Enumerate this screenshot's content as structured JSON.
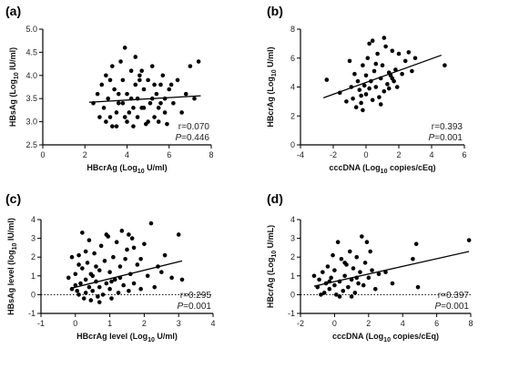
{
  "chart_data": [
    {
      "type": "scatter",
      "panel_label": "(a)",
      "xlabel": "HBcrAg (Log",
      "xlabel_sub": "10",
      "xlabel_tail": " U/ml)",
      "ylabel": "HBsAg (Log",
      "ylabel_sub": "10",
      "ylabel_tail": " IU/ml)",
      "xlim": [
        0,
        8
      ],
      "xticks": [
        0,
        2,
        4,
        6,
        8
      ],
      "ylim": [
        2.5,
        5.0
      ],
      "yticks": [
        2.5,
        3.0,
        3.5,
        4.0,
        4.5,
        5.0
      ],
      "ytick_decimals": 1,
      "zero_line": false,
      "stat_r": "r=0.070",
      "stat_p_label": "P",
      "stat_p_value": "=0.446",
      "fit_line": [
        [
          2.2,
          3.42
        ],
        [
          7.5,
          3.56
        ]
      ],
      "points": [
        [
          2.4,
          3.4
        ],
        [
          2.6,
          3.6
        ],
        [
          2.8,
          3.8
        ],
        [
          2.9,
          3.3
        ],
        [
          3.0,
          4.0
        ],
        [
          3.1,
          3.5
        ],
        [
          3.2,
          3.1
        ],
        [
          3.3,
          4.2
        ],
        [
          3.4,
          3.7
        ],
        [
          3.5,
          2.9
        ],
        [
          3.6,
          3.4
        ],
        [
          3.7,
          4.3
        ],
        [
          3.8,
          3.9
        ],
        [
          3.9,
          4.6
        ],
        [
          4.0,
          3.6
        ],
        [
          4.1,
          3.2
        ],
        [
          4.2,
          4.1
        ],
        [
          4.3,
          2.9
        ],
        [
          4.4,
          3.8
        ],
        [
          4.5,
          3.5
        ],
        [
          4.6,
          4.0
        ],
        [
          4.7,
          3.3
        ],
        [
          4.8,
          3.7
        ],
        [
          4.9,
          2.95
        ],
        [
          5.0,
          3.9
        ],
        [
          5.1,
          3.4
        ],
        [
          5.2,
          4.2
        ],
        [
          5.3,
          3.1
        ],
        [
          5.4,
          3.6
        ],
        [
          5.5,
          3.3
        ],
        [
          5.6,
          3.8
        ],
        [
          5.7,
          4.0
        ],
        [
          5.8,
          3.5
        ],
        [
          5.9,
          2.95
        ],
        [
          6.0,
          3.7
        ],
        [
          6.2,
          3.4
        ],
        [
          6.4,
          3.9
        ],
        [
          6.6,
          3.2
        ],
        [
          6.8,
          3.6
        ],
        [
          7.0,
          4.2
        ],
        [
          7.2,
          3.5
        ],
        [
          7.4,
          4.3
        ],
        [
          3.0,
          3.0
        ],
        [
          3.5,
          3.2
        ],
        [
          4.0,
          3.0
        ],
        [
          4.5,
          3.1
        ],
        [
          5.0,
          3.0
        ],
        [
          5.5,
          3.0
        ],
        [
          3.2,
          3.9
        ],
        [
          3.8,
          3.4
        ],
        [
          4.2,
          3.5
        ],
        [
          4.8,
          3.3
        ],
        [
          5.2,
          3.5
        ],
        [
          5.8,
          3.2
        ],
        [
          4.4,
          4.4
        ],
        [
          4.6,
          3.9
        ],
        [
          3.6,
          3.6
        ],
        [
          4.3,
          3.3
        ],
        [
          5.6,
          3.4
        ],
        [
          6.1,
          3.8
        ],
        [
          3.9,
          3.1
        ],
        [
          4.7,
          4.1
        ],
        [
          5.3,
          3.8
        ],
        [
          2.7,
          3.1
        ],
        [
          3.3,
          2.9
        ]
      ]
    },
    {
      "type": "scatter",
      "panel_label": "(b)",
      "xlabel": "cccDNA (Log",
      "xlabel_sub": "10",
      "xlabel_tail": " copies/cEq)",
      "ylabel": "HBcrAg (Log",
      "ylabel_sub": "10",
      "ylabel_tail": " U/ml)",
      "xlim": [
        -4,
        6
      ],
      "xticks": [
        -4,
        -2,
        0,
        2,
        4,
        6
      ],
      "ylim": [
        0,
        8
      ],
      "yticks": [
        0,
        2,
        4,
        6,
        8
      ],
      "ytick_decimals": 0,
      "zero_line": false,
      "stat_r": "r=0.393",
      "stat_p_label": "P",
      "stat_p_value": "=0.001",
      "fit_line": [
        [
          -2.6,
          3.25
        ],
        [
          4.6,
          6.2
        ]
      ],
      "points": [
        [
          -2.4,
          4.5
        ],
        [
          -1.6,
          3.6
        ],
        [
          -1.2,
          3.0
        ],
        [
          -1.0,
          5.8
        ],
        [
          -0.9,
          4.0
        ],
        [
          -0.8,
          3.2
        ],
        [
          -0.6,
          2.6
        ],
        [
          -0.5,
          4.4
        ],
        [
          -0.4,
          3.8
        ],
        [
          -0.3,
          2.9
        ],
        [
          -0.2,
          5.5
        ],
        [
          -0.1,
          4.1
        ],
        [
          0.0,
          3.5
        ],
        [
          0.0,
          4.8
        ],
        [
          0.1,
          6.0
        ],
        [
          0.2,
          3.9
        ],
        [
          0.3,
          4.4
        ],
        [
          0.4,
          7.2
        ],
        [
          0.5,
          5.1
        ],
        [
          0.6,
          4.0
        ],
        [
          0.7,
          6.3
        ],
        [
          0.8,
          3.3
        ],
        [
          0.9,
          4.6
        ],
        [
          1.0,
          5.5
        ],
        [
          1.1,
          3.7
        ],
        [
          1.2,
          6.8
        ],
        [
          1.3,
          4.2
        ],
        [
          1.4,
          5.0
        ],
        [
          1.5,
          4.8
        ],
        [
          1.6,
          6.5
        ],
        [
          1.7,
          4.4
        ],
        [
          1.8,
          5.2
        ],
        [
          2.0,
          6.3
        ],
        [
          2.2,
          4.9
        ],
        [
          2.4,
          5.8
        ],
        [
          2.6,
          6.4
        ],
        [
          3.0,
          6.0
        ],
        [
          0.2,
          7.0
        ],
        [
          -0.3,
          3.4
        ],
        [
          0.9,
          2.8
        ],
        [
          1.4,
          3.9
        ],
        [
          1.9,
          4.0
        ],
        [
          -0.7,
          4.9
        ],
        [
          0.6,
          5.6
        ],
        [
          1.1,
          7.4
        ],
        [
          2.8,
          5.1
        ],
        [
          4.8,
          5.5
        ],
        [
          -0.2,
          2.4
        ],
        [
          0.4,
          3.1
        ],
        [
          1.6,
          4.6
        ]
      ]
    },
    {
      "type": "scatter",
      "panel_label": "(c)",
      "xlabel": "HBcrAg level (Log",
      "xlabel_sub": "10",
      "xlabel_tail": " U/ml)",
      "ylabel": "HBsAg level (log",
      "ylabel_sub": "10",
      "ylabel_tail": " IU/ml)",
      "xlim": [
        -1,
        4
      ],
      "xticks": [
        -1,
        0,
        1,
        2,
        3,
        4
      ],
      "ylim": [
        -1,
        4
      ],
      "yticks": [
        -1,
        0,
        1,
        2,
        3,
        4
      ],
      "ytick_decimals": 0,
      "zero_line": true,
      "stat_r": "r=0.295",
      "stat_p_label": "P",
      "stat_p_value": "=0.001",
      "fit_line": [
        [
          -0.1,
          0.35
        ],
        [
          3.1,
          1.8
        ]
      ],
      "points": [
        [
          -0.2,
          0.9
        ],
        [
          -0.1,
          0.3
        ],
        [
          0.0,
          0.5
        ],
        [
          0.0,
          1.1
        ],
        [
          0.05,
          0.2
        ],
        [
          0.1,
          2.1
        ],
        [
          0.1,
          0.0
        ],
        [
          0.15,
          0.6
        ],
        [
          0.2,
          3.3
        ],
        [
          0.2,
          1.4
        ],
        [
          0.25,
          -0.2
        ],
        [
          0.3,
          0.8
        ],
        [
          0.3,
          0.1
        ],
        [
          0.35,
          1.7
        ],
        [
          0.4,
          0.4
        ],
        [
          0.4,
          2.9
        ],
        [
          0.45,
          -0.3
        ],
        [
          0.5,
          1.0
        ],
        [
          0.5,
          0.2
        ],
        [
          0.55,
          2.2
        ],
        [
          0.6,
          0.7
        ],
        [
          0.65,
          -0.1
        ],
        [
          0.7,
          1.3
        ],
        [
          0.7,
          0.4
        ],
        [
          0.75,
          2.6
        ],
        [
          0.8,
          0.0
        ],
        [
          0.85,
          1.8
        ],
        [
          0.9,
          0.6
        ],
        [
          0.95,
          3.1
        ],
        [
          1.0,
          0.3
        ],
        [
          1.0,
          1.2
        ],
        [
          1.05,
          -0.2
        ],
        [
          1.1,
          2.0
        ],
        [
          1.15,
          0.8
        ],
        [
          1.2,
          2.8
        ],
        [
          1.25,
          0.1
        ],
        [
          1.3,
          1.5
        ],
        [
          1.35,
          3.4
        ],
        [
          1.4,
          0.5
        ],
        [
          1.45,
          1.9
        ],
        [
          1.5,
          2.4
        ],
        [
          1.55,
          0.2
        ],
        [
          1.6,
          1.1
        ],
        [
          1.65,
          3.0
        ],
        [
          1.7,
          0.6
        ],
        [
          1.8,
          1.6
        ],
        [
          1.9,
          0.3
        ],
        [
          2.0,
          2.7
        ],
        [
          2.1,
          1.0
        ],
        [
          2.2,
          3.8
        ],
        [
          2.3,
          0.4
        ],
        [
          2.4,
          1.5
        ],
        [
          2.6,
          2.1
        ],
        [
          2.8,
          0.9
        ],
        [
          3.0,
          3.2
        ],
        [
          3.1,
          0.8
        ],
        [
          0.1,
          1.6
        ],
        [
          0.6,
          1.5
        ],
        [
          1.3,
          0.9
        ],
        [
          1.7,
          2.5
        ],
        [
          0.3,
          2.3
        ],
        [
          0.9,
          3.2
        ],
        [
          2.5,
          1.2
        ],
        [
          -0.1,
          2.0
        ],
        [
          0.45,
          1.1
        ],
        [
          1.05,
          0.7
        ],
        [
          1.9,
          1.9
        ],
        [
          0.7,
          -0.4
        ],
        [
          1.55,
          3.2
        ]
      ]
    },
    {
      "type": "scatter",
      "panel_label": "(d)",
      "xlabel": "cccDNA (Log",
      "xlabel_sub": "10",
      "xlabel_tail": " copies/cEq)",
      "ylabel": "HBcrAg (Log",
      "ylabel_sub": "10",
      "ylabel_tail": " U/mL)",
      "xlim": [
        -2,
        8
      ],
      "xticks": [
        -2,
        0,
        2,
        4,
        6,
        8
      ],
      "ylim": [
        -1,
        4
      ],
      "yticks": [
        -1,
        0,
        1,
        2,
        3,
        4
      ],
      "ytick_decimals": 0,
      "zero_line": true,
      "stat_r": "r=0.397",
      "stat_p_label": "P",
      "stat_p_value": "=0.001",
      "fit_line": [
        [
          -1.2,
          0.45
        ],
        [
          7.9,
          2.3
        ]
      ],
      "points": [
        [
          -1.2,
          1.0
        ],
        [
          -1.0,
          0.4
        ],
        [
          -0.9,
          0.8
        ],
        [
          -0.7,
          1.2
        ],
        [
          -0.6,
          0.1
        ],
        [
          -0.5,
          0.6
        ],
        [
          -0.4,
          1.5
        ],
        [
          -0.3,
          0.3
        ],
        [
          -0.2,
          0.9
        ],
        [
          -0.1,
          2.1
        ],
        [
          0.0,
          0.5
        ],
        [
          0.0,
          1.3
        ],
        [
          0.1,
          0.0
        ],
        [
          0.2,
          2.8
        ],
        [
          0.3,
          0.7
        ],
        [
          0.4,
          1.9
        ],
        [
          0.5,
          0.2
        ],
        [
          0.6,
          1.0
        ],
        [
          0.7,
          1.6
        ],
        [
          0.8,
          0.4
        ],
        [
          0.9,
          2.3
        ],
        [
          1.0,
          0.8
        ],
        [
          1.1,
          1.4
        ],
        [
          1.2,
          0.1
        ],
        [
          1.3,
          2.0
        ],
        [
          1.4,
          0.6
        ],
        [
          1.5,
          1.2
        ],
        [
          1.6,
          3.1
        ],
        [
          1.7,
          0.5
        ],
        [
          1.8,
          1.7
        ],
        [
          1.9,
          2.8
        ],
        [
          2.0,
          0.9
        ],
        [
          2.2,
          1.3
        ],
        [
          2.4,
          0.3
        ],
        [
          2.6,
          1.1
        ],
        [
          3.0,
          1.2
        ],
        [
          3.4,
          0.6
        ],
        [
          4.8,
          2.7
        ],
        [
          4.9,
          0.4
        ],
        [
          4.6,
          1.9
        ],
        [
          7.9,
          2.9
        ],
        [
          -0.8,
          0.0
        ],
        [
          0.3,
          -0.1
        ],
        [
          1.0,
          -0.1
        ],
        [
          1.3,
          0.9
        ],
        [
          0.6,
          1.7
        ],
        [
          -0.3,
          0.7
        ],
        [
          2.1,
          2.3
        ]
      ]
    }
  ]
}
